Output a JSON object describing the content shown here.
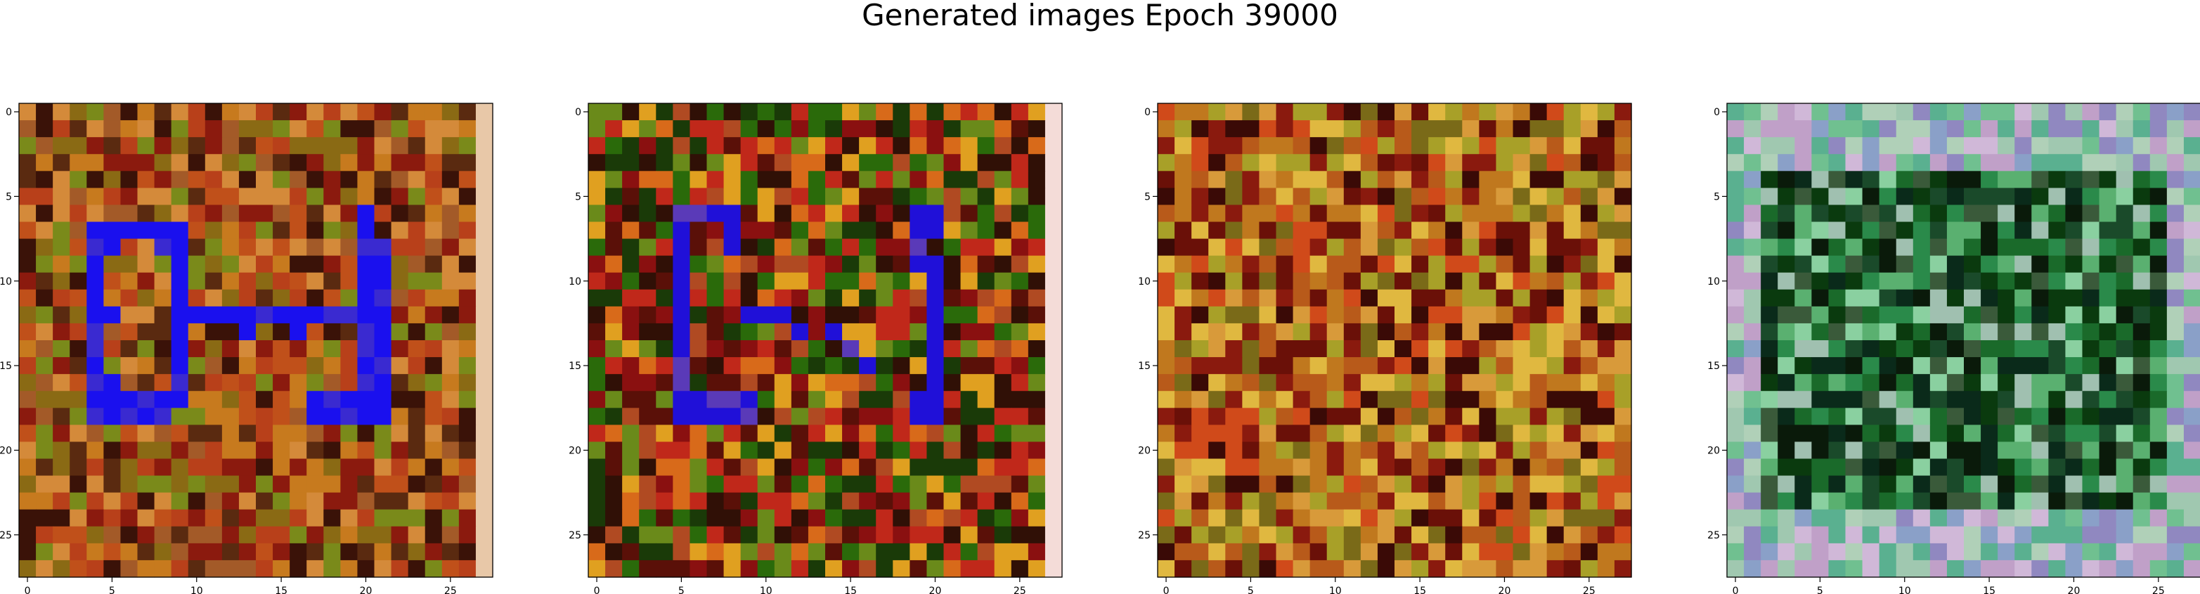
{
  "figure": {
    "title": "Generated images Epoch 39000"
  },
  "chart_data": {
    "type": "heatmap",
    "image_size": 28,
    "xlim": [
      -0.5,
      27.5
    ],
    "ylim": [
      27.5,
      -0.5
    ],
    "x_ticks": [
      0,
      5,
      10,
      15,
      20,
      25
    ],
    "y_ticks": [
      0,
      5,
      10,
      15,
      20,
      25
    ],
    "grid": false,
    "panels": [
      {
        "palette": [
          "#8b1a0e",
          "#b8401a",
          "#c77a1e",
          "#8a6a14",
          "#5a2a10",
          "#3a1208",
          "#a35a28",
          "#d48a3a",
          "#7a8a1a",
          "#c0501a"
        ],
        "shape": {
          "color": "#1a10ee",
          "alt": "#3a2ad0",
          "cells": [
            [
              7,
              4
            ],
            [
              7,
              5
            ],
            [
              7,
              6
            ],
            [
              7,
              7
            ],
            [
              7,
              8
            ],
            [
              7,
              9
            ],
            [
              8,
              4
            ],
            [
              8,
              5
            ],
            [
              8,
              8
            ],
            [
              8,
              9
            ],
            [
              9,
              4
            ],
            [
              9,
              9
            ],
            [
              10,
              4
            ],
            [
              10,
              9
            ],
            [
              11,
              4
            ],
            [
              11,
              9
            ],
            [
              12,
              4
            ],
            [
              12,
              5
            ],
            [
              12,
              9
            ],
            [
              12,
              10
            ],
            [
              12,
              11
            ],
            [
              12,
              12
            ],
            [
              12,
              13
            ],
            [
              12,
              14
            ],
            [
              12,
              15
            ],
            [
              12,
              16
            ],
            [
              12,
              17
            ],
            [
              12,
              18
            ],
            [
              12,
              19
            ],
            [
              12,
              20
            ],
            [
              12,
              21
            ],
            [
              13,
              4
            ],
            [
              13,
              9
            ],
            [
              13,
              13
            ],
            [
              13,
              16
            ],
            [
              13,
              20
            ],
            [
              13,
              21
            ],
            [
              14,
              4
            ],
            [
              14,
              9
            ],
            [
              14,
              20
            ],
            [
              14,
              21
            ],
            [
              15,
              4
            ],
            [
              15,
              9
            ],
            [
              15,
              20
            ],
            [
              15,
              21
            ],
            [
              16,
              4
            ],
            [
              16,
              5
            ],
            [
              16,
              9
            ],
            [
              16,
              20
            ],
            [
              16,
              21
            ],
            [
              17,
              4
            ],
            [
              17,
              5
            ],
            [
              17,
              6
            ],
            [
              17,
              7
            ],
            [
              17,
              8
            ],
            [
              17,
              9
            ],
            [
              17,
              17
            ],
            [
              17,
              18
            ],
            [
              17,
              19
            ],
            [
              17,
              20
            ],
            [
              17,
              21
            ],
            [
              18,
              4
            ],
            [
              18,
              5
            ],
            [
              18,
              6
            ],
            [
              18,
              7
            ],
            [
              18,
              8
            ],
            [
              18,
              17
            ],
            [
              18,
              18
            ],
            [
              18,
              19
            ],
            [
              18,
              20
            ],
            [
              18,
              21
            ],
            [
              6,
              20
            ],
            [
              7,
              20
            ],
            [
              8,
              20
            ],
            [
              9,
              20
            ],
            [
              10,
              20
            ],
            [
              11,
              20
            ],
            [
              8,
              21
            ],
            [
              9,
              21
            ],
            [
              10,
              21
            ],
            [
              11,
              21
            ]
          ]
        },
        "edge_color": "#e8c8a8"
      },
      {
        "palette": [
          "#c0281a",
          "#d86a1a",
          "#2a6a0a",
          "#8a1010",
          "#e0a020",
          "#5a1008",
          "#1a3a08",
          "#b04a22",
          "#6a8a1a",
          "#301006"
        ],
        "shape": {
          "color": "#2010d8",
          "alt": "#5a3ab8",
          "cells": [
            [
              6,
              5
            ],
            [
              6,
              6
            ],
            [
              6,
              7
            ],
            [
              6,
              8
            ],
            [
              7,
              5
            ],
            [
              7,
              8
            ],
            [
              8,
              5
            ],
            [
              8,
              8
            ],
            [
              9,
              5
            ],
            [
              10,
              5
            ],
            [
              11,
              5
            ],
            [
              12,
              5
            ],
            [
              13,
              5
            ],
            [
              14,
              5
            ],
            [
              15,
              5
            ],
            [
              16,
              5
            ],
            [
              17,
              5
            ],
            [
              17,
              6
            ],
            [
              17,
              7
            ],
            [
              17,
              8
            ],
            [
              17,
              9
            ],
            [
              18,
              5
            ],
            [
              18,
              6
            ],
            [
              18,
              7
            ],
            [
              18,
              8
            ],
            [
              18,
              9
            ],
            [
              6,
              19
            ],
            [
              6,
              20
            ],
            [
              7,
              19
            ],
            [
              7,
              20
            ],
            [
              8,
              19
            ],
            [
              9,
              19
            ],
            [
              9,
              20
            ],
            [
              10,
              20
            ],
            [
              11,
              20
            ],
            [
              12,
              20
            ],
            [
              13,
              20
            ],
            [
              14,
              20
            ],
            [
              15,
              20
            ],
            [
              16,
              20
            ],
            [
              17,
              19
            ],
            [
              17,
              20
            ],
            [
              18,
              19
            ],
            [
              18,
              20
            ],
            [
              12,
              9
            ],
            [
              12,
              10
            ],
            [
              12,
              11
            ],
            [
              13,
              12
            ],
            [
              13,
              14
            ],
            [
              14,
              15
            ],
            [
              15,
              16
            ]
          ]
        },
        "edge_color": "#f4dcd8"
      },
      {
        "palette": [
          "#b85a1a",
          "#c0781e",
          "#8a1a0e",
          "#d89a3a",
          "#6a1008",
          "#a8a028",
          "#3a0a06",
          "#e0b840",
          "#7a6a18",
          "#d04a1a"
        ],
        "shape": null,
        "edge_color": null
      },
      {
        "palette": [
          "#0a3a0e",
          "#1a6a2a",
          "#2a8a4a",
          "#0a1a0a",
          "#5ab070",
          "#8ad0a0",
          "#0a2a1a",
          "#3a5a3a",
          "#a0c0b0",
          "#1a4a2a"
        ],
        "shape": null,
        "edge_color": null,
        "border_palette": [
          "#8aa0c8",
          "#a0c8b0",
          "#c0a0c8",
          "#5ab090",
          "#d0b8d8",
          "#70c090",
          "#9088c0",
          "#b0d0b8"
        ]
      }
    ]
  }
}
